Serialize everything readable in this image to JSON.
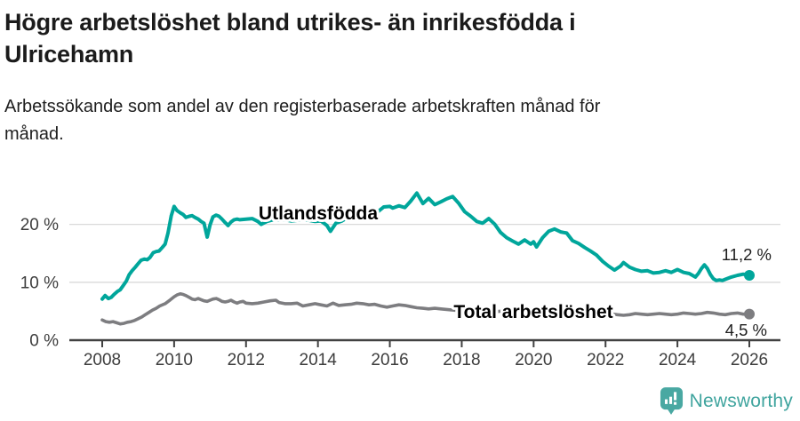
{
  "header": {
    "title_lines": [
      "Högre arbetslöshet bland utrikes- än inrikesfödda i",
      "Ulricehamn"
    ],
    "subtitle_lines": [
      "Arbetssökande som andel av den registerbaserade arbetskraften månad för",
      "månad."
    ]
  },
  "chart_data": {
    "type": "line",
    "title": "Högre arbetslöshet bland utrikes- än inrikesfödda i Ulricehamn",
    "xlabel": "",
    "ylabel": "",
    "unit": "%",
    "grid": "horizontal-gridlines-at-10-and-20",
    "legend_position": "inline-labels-on-lines",
    "x_axis": {
      "range": [
        2008,
        2026
      ],
      "tick_years": [
        2008,
        2010,
        2012,
        2014,
        2016,
        2018,
        2020,
        2022,
        2024,
        2026
      ],
      "tick_labels": [
        "2008",
        "2010",
        "2012",
        "2014",
        "2016",
        "2018",
        "2020",
        "2022",
        "2024",
        "2026"
      ]
    },
    "y_axis": {
      "range": [
        0,
        26.5
      ],
      "tick_values": [
        0,
        10,
        20
      ],
      "tick_labels": [
        "0 %",
        "10 %",
        "20 %"
      ]
    },
    "colors": {
      "grid": "#d9d9d9",
      "axis": "#414141",
      "tick_text": "#3d3d3d",
      "value_text": "#1d1d1d"
    },
    "series": [
      {
        "name": "Utlandsfödda",
        "color": "#00a69b",
        "end_value": 11.2,
        "end_label": "11,2 %",
        "points": [
          [
            2008.0,
            7.1
          ],
          [
            2008.08,
            7.7
          ],
          [
            2008.17,
            7.2
          ],
          [
            2008.25,
            7.4
          ],
          [
            2008.33,
            7.9
          ],
          [
            2008.42,
            8.4
          ],
          [
            2008.5,
            8.7
          ],
          [
            2008.58,
            9.4
          ],
          [
            2008.67,
            10.2
          ],
          [
            2008.75,
            11.3
          ],
          [
            2008.83,
            12.0
          ],
          [
            2008.92,
            12.6
          ],
          [
            2009.0,
            13.2
          ],
          [
            2009.08,
            13.8
          ],
          [
            2009.17,
            14.0
          ],
          [
            2009.25,
            13.9
          ],
          [
            2009.33,
            14.3
          ],
          [
            2009.42,
            15.1
          ],
          [
            2009.5,
            15.3
          ],
          [
            2009.58,
            15.4
          ],
          [
            2009.67,
            16.0
          ],
          [
            2009.75,
            16.6
          ],
          [
            2009.83,
            18.5
          ],
          [
            2009.92,
            21.5
          ],
          [
            2010.0,
            23.1
          ],
          [
            2010.08,
            22.4
          ],
          [
            2010.17,
            22.0
          ],
          [
            2010.25,
            21.7
          ],
          [
            2010.33,
            21.2
          ],
          [
            2010.42,
            21.4
          ],
          [
            2010.5,
            21.5
          ],
          [
            2010.58,
            21.2
          ],
          [
            2010.67,
            20.9
          ],
          [
            2010.75,
            20.5
          ],
          [
            2010.83,
            20.2
          ],
          [
            2010.92,
            17.8
          ],
          [
            2011.0,
            19.9
          ],
          [
            2011.08,
            21.3
          ],
          [
            2011.17,
            21.6
          ],
          [
            2011.25,
            21.4
          ],
          [
            2011.33,
            20.9
          ],
          [
            2011.42,
            20.3
          ],
          [
            2011.5,
            19.8
          ],
          [
            2011.58,
            20.4
          ],
          [
            2011.67,
            20.8
          ],
          [
            2011.75,
            20.9
          ],
          [
            2011.83,
            20.8
          ],
          [
            2012.0,
            20.9
          ],
          [
            2012.17,
            21.0
          ],
          [
            2012.33,
            20.5
          ],
          [
            2012.42,
            20.0
          ],
          [
            2012.58,
            20.5
          ],
          [
            2012.75,
            20.8
          ],
          [
            2012.92,
            20.7
          ],
          [
            2013.08,
            20.8
          ],
          [
            2013.25,
            20.6
          ],
          [
            2013.42,
            20.7
          ],
          [
            2013.58,
            20.9
          ],
          [
            2013.75,
            20.7
          ],
          [
            2013.92,
            20.5
          ],
          [
            2014.08,
            20.6
          ],
          [
            2014.25,
            19.8
          ],
          [
            2014.35,
            18.8
          ],
          [
            2014.5,
            20.2
          ],
          [
            2014.67,
            20.6
          ],
          [
            2014.83,
            21.2
          ],
          [
            2015.0,
            21.8
          ],
          [
            2015.17,
            22.3
          ],
          [
            2015.33,
            22.1
          ],
          [
            2015.5,
            22.4
          ],
          [
            2015.67,
            22.2
          ],
          [
            2015.83,
            23.0
          ],
          [
            2016.0,
            23.1
          ],
          [
            2016.08,
            22.8
          ],
          [
            2016.25,
            23.2
          ],
          [
            2016.42,
            22.9
          ],
          [
            2016.58,
            24.0
          ],
          [
            2016.75,
            25.4
          ],
          [
            2016.92,
            23.6
          ],
          [
            2017.08,
            24.5
          ],
          [
            2017.25,
            23.4
          ],
          [
            2017.42,
            23.9
          ],
          [
            2017.58,
            24.4
          ],
          [
            2017.75,
            24.8
          ],
          [
            2017.92,
            23.6
          ],
          [
            2018.08,
            22.2
          ],
          [
            2018.25,
            21.4
          ],
          [
            2018.42,
            20.5
          ],
          [
            2018.58,
            20.2
          ],
          [
            2018.75,
            21.0
          ],
          [
            2018.92,
            20.0
          ],
          [
            2019.08,
            18.6
          ],
          [
            2019.25,
            17.7
          ],
          [
            2019.42,
            17.1
          ],
          [
            2019.58,
            16.6
          ],
          [
            2019.75,
            17.3
          ],
          [
            2019.92,
            16.6
          ],
          [
            2020.0,
            17.0
          ],
          [
            2020.08,
            16.1
          ],
          [
            2020.25,
            17.7
          ],
          [
            2020.42,
            18.8
          ],
          [
            2020.58,
            19.2
          ],
          [
            2020.75,
            18.7
          ],
          [
            2020.92,
            18.5
          ],
          [
            2021.08,
            17.2
          ],
          [
            2021.25,
            16.7
          ],
          [
            2021.42,
            16.0
          ],
          [
            2021.58,
            15.4
          ],
          [
            2021.75,
            14.7
          ],
          [
            2021.92,
            13.6
          ],
          [
            2022.08,
            12.8
          ],
          [
            2022.25,
            12.1
          ],
          [
            2022.42,
            12.8
          ],
          [
            2022.5,
            13.4
          ],
          [
            2022.67,
            12.6
          ],
          [
            2022.83,
            12.2
          ],
          [
            2023.0,
            11.9
          ],
          [
            2023.17,
            12.0
          ],
          [
            2023.33,
            11.6
          ],
          [
            2023.5,
            11.7
          ],
          [
            2023.67,
            12.0
          ],
          [
            2023.83,
            11.7
          ],
          [
            2024.0,
            12.2
          ],
          [
            2024.17,
            11.7
          ],
          [
            2024.33,
            11.5
          ],
          [
            2024.5,
            10.9
          ],
          [
            2024.58,
            11.5
          ],
          [
            2024.67,
            12.4
          ],
          [
            2024.75,
            13.0
          ],
          [
            2024.83,
            12.4
          ],
          [
            2024.92,
            11.3
          ],
          [
            2025.0,
            10.6
          ],
          [
            2025.08,
            10.3
          ],
          [
            2025.17,
            10.4
          ],
          [
            2025.25,
            10.3
          ],
          [
            2025.33,
            10.5
          ],
          [
            2025.5,
            10.9
          ],
          [
            2025.67,
            11.2
          ],
          [
            2025.83,
            11.4
          ],
          [
            2026.0,
            11.2
          ]
        ]
      },
      {
        "name": "Total arbetslöshet",
        "color": "#7d7d80",
        "end_value": 4.5,
        "end_label": "4,5 %",
        "points": [
          [
            2008.0,
            3.5
          ],
          [
            2008.1,
            3.2
          ],
          [
            2008.2,
            3.1
          ],
          [
            2008.3,
            3.2
          ],
          [
            2008.4,
            3.0
          ],
          [
            2008.5,
            2.8
          ],
          [
            2008.6,
            2.9
          ],
          [
            2008.7,
            3.1
          ],
          [
            2008.8,
            3.2
          ],
          [
            2008.9,
            3.4
          ],
          [
            2009.0,
            3.7
          ],
          [
            2009.1,
            4.0
          ],
          [
            2009.2,
            4.4
          ],
          [
            2009.3,
            4.8
          ],
          [
            2009.4,
            5.2
          ],
          [
            2009.5,
            5.5
          ],
          [
            2009.6,
            5.9
          ],
          [
            2009.75,
            6.3
          ],
          [
            2009.9,
            7.0
          ],
          [
            2010.0,
            7.5
          ],
          [
            2010.08,
            7.8
          ],
          [
            2010.17,
            8.0
          ],
          [
            2010.25,
            7.9
          ],
          [
            2010.33,
            7.7
          ],
          [
            2010.42,
            7.4
          ],
          [
            2010.5,
            7.1
          ],
          [
            2010.58,
            7.0
          ],
          [
            2010.67,
            7.2
          ],
          [
            2010.75,
            7.0
          ],
          [
            2010.83,
            6.8
          ],
          [
            2010.92,
            6.7
          ],
          [
            2011.0,
            6.9
          ],
          [
            2011.08,
            7.1
          ],
          [
            2011.17,
            7.2
          ],
          [
            2011.25,
            7.0
          ],
          [
            2011.33,
            6.7
          ],
          [
            2011.42,
            6.6
          ],
          [
            2011.5,
            6.7
          ],
          [
            2011.58,
            6.9
          ],
          [
            2011.67,
            6.6
          ],
          [
            2011.75,
            6.4
          ],
          [
            2011.83,
            6.6
          ],
          [
            2011.92,
            6.7
          ],
          [
            2012.0,
            6.4
          ],
          [
            2012.17,
            6.3
          ],
          [
            2012.33,
            6.4
          ],
          [
            2012.5,
            6.6
          ],
          [
            2012.67,
            6.8
          ],
          [
            2012.83,
            6.9
          ],
          [
            2012.92,
            6.5
          ],
          [
            2013.08,
            6.3
          ],
          [
            2013.25,
            6.3
          ],
          [
            2013.42,
            6.4
          ],
          [
            2013.58,
            5.9
          ],
          [
            2013.75,
            6.1
          ],
          [
            2013.92,
            6.3
          ],
          [
            2014.08,
            6.1
          ],
          [
            2014.25,
            5.9
          ],
          [
            2014.42,
            6.4
          ],
          [
            2014.58,
            6.0
          ],
          [
            2014.75,
            6.1
          ],
          [
            2014.92,
            6.2
          ],
          [
            2015.08,
            6.4
          ],
          [
            2015.25,
            6.3
          ],
          [
            2015.42,
            6.1
          ],
          [
            2015.58,
            6.2
          ],
          [
            2015.75,
            5.9
          ],
          [
            2015.92,
            5.7
          ],
          [
            2016.08,
            5.9
          ],
          [
            2016.25,
            6.1
          ],
          [
            2016.42,
            6.0
          ],
          [
            2016.58,
            5.8
          ],
          [
            2016.75,
            5.6
          ],
          [
            2016.92,
            5.5
          ],
          [
            2017.08,
            5.4
          ],
          [
            2017.25,
            5.5
          ],
          [
            2017.42,
            5.4
          ],
          [
            2017.58,
            5.3
          ],
          [
            2017.75,
            5.2
          ],
          [
            2017.92,
            5.1
          ],
          [
            2018.08,
            5.0
          ],
          [
            2018.33,
            4.9
          ],
          [
            2018.58,
            5.0
          ],
          [
            2018.83,
            4.9
          ],
          [
            2019.08,
            5.0
          ],
          [
            2019.33,
            5.1
          ],
          [
            2019.58,
            5.0
          ],
          [
            2019.83,
            5.1
          ],
          [
            2020.08,
            5.3
          ],
          [
            2020.33,
            5.6
          ],
          [
            2020.58,
            5.7
          ],
          [
            2020.83,
            5.5
          ],
          [
            2021.08,
            5.3
          ],
          [
            2021.33,
            5.1
          ],
          [
            2021.58,
            4.9
          ],
          [
            2021.83,
            4.7
          ],
          [
            2022.08,
            4.6
          ],
          [
            2022.33,
            4.4
          ],
          [
            2022.5,
            4.3
          ],
          [
            2022.67,
            4.4
          ],
          [
            2022.83,
            4.6
          ],
          [
            2023.0,
            4.5
          ],
          [
            2023.17,
            4.4
          ],
          [
            2023.33,
            4.5
          ],
          [
            2023.5,
            4.6
          ],
          [
            2023.67,
            4.5
          ],
          [
            2023.83,
            4.4
          ],
          [
            2024.0,
            4.5
          ],
          [
            2024.17,
            4.7
          ],
          [
            2024.33,
            4.6
          ],
          [
            2024.5,
            4.5
          ],
          [
            2024.67,
            4.6
          ],
          [
            2024.83,
            4.8
          ],
          [
            2025.0,
            4.7
          ],
          [
            2025.17,
            4.5
          ],
          [
            2025.33,
            4.4
          ],
          [
            2025.5,
            4.6
          ],
          [
            2025.67,
            4.7
          ],
          [
            2025.83,
            4.5
          ],
          [
            2026.0,
            4.5
          ]
        ]
      }
    ]
  },
  "footer": {
    "brand": "Newsworthy",
    "brand_text_color": "#3fa49e",
    "brand_icon_color": "#49a8a2"
  }
}
